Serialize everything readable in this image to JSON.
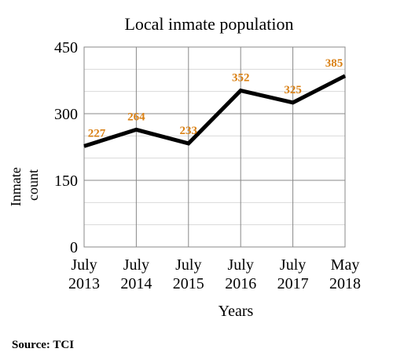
{
  "chart_data": {
    "type": "line",
    "title": "Local inmate population",
    "xlabel": "Years",
    "ylabel": "Inmate count",
    "categories": [
      "July 2013",
      "July 2014",
      "July 2015",
      "July 2016",
      "July 2017",
      "May 2018"
    ],
    "category_lines": [
      [
        "July",
        "2013"
      ],
      [
        "July",
        "2014"
      ],
      [
        "July",
        "2015"
      ],
      [
        "July",
        "2016"
      ],
      [
        "July",
        "2017"
      ],
      [
        "May",
        "2018"
      ]
    ],
    "series": [
      {
        "values": [
          227,
          264,
          233,
          352,
          325,
          385
        ]
      }
    ],
    "ylim": [
      0,
      450
    ],
    "yticks": [
      0,
      150,
      300,
      450
    ],
    "grid": true,
    "line_color": "#000000",
    "label_color": "#d98014"
  },
  "source": "Source: TCI"
}
